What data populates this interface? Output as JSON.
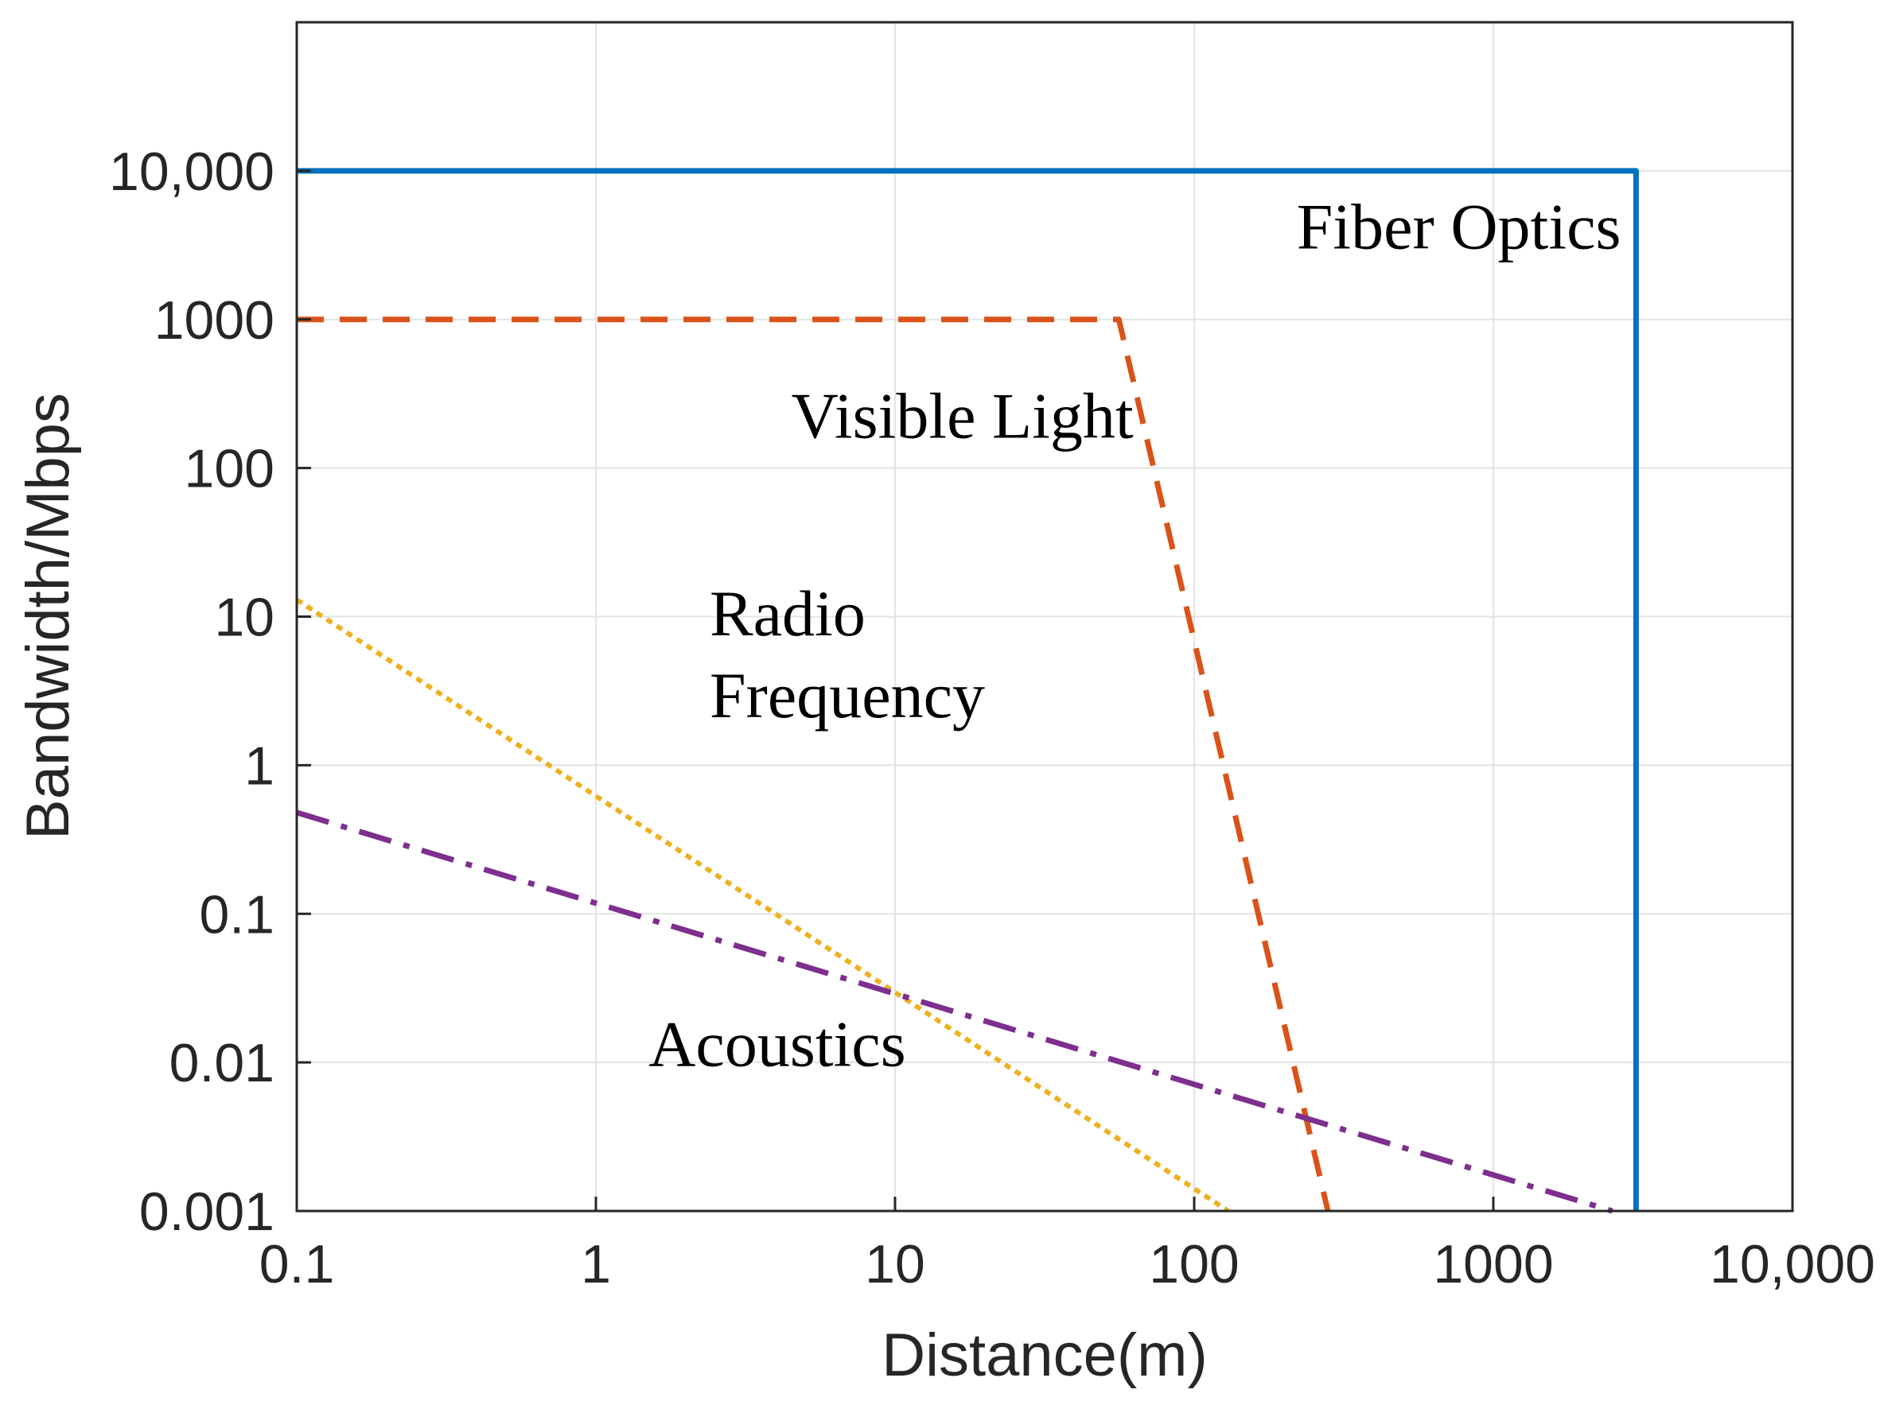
{
  "chart_data": {
    "type": "line",
    "title": "",
    "xlabel": "Distance(m)",
    "ylabel": "Bandwidth/Mbps",
    "xscale": "log",
    "yscale": "log",
    "xlim": [
      0.1,
      10000
    ],
    "ylim": [
      0.001,
      100000
    ],
    "grid": true,
    "x_ticks": [
      {
        "value": 0.1,
        "label": "0.1"
      },
      {
        "value": 1,
        "label": "1"
      },
      {
        "value": 10,
        "label": "10"
      },
      {
        "value": 100,
        "label": "100"
      },
      {
        "value": 1000,
        "label": "1000"
      },
      {
        "value": 10000,
        "label": "10,000"
      }
    ],
    "y_ticks": [
      {
        "value": 0.001,
        "label": "0.001"
      },
      {
        "value": 0.01,
        "label": "0.01"
      },
      {
        "value": 0.1,
        "label": "0.1"
      },
      {
        "value": 1,
        "label": "1"
      },
      {
        "value": 10,
        "label": "10"
      },
      {
        "value": 100,
        "label": "100"
      },
      {
        "value": 1000,
        "label": "1000"
      },
      {
        "value": 10000,
        "label": "10,000"
      }
    ],
    "series": [
      {
        "name": "Fiber Optics",
        "color": "#0072BD",
        "style": "solid",
        "points": [
          [
            0.1,
            10000
          ],
          [
            3000,
            10000
          ],
          [
            3000,
            0.001
          ]
        ]
      },
      {
        "name": "Visible Light",
        "color": "#D95319",
        "style": "dashed",
        "points": [
          [
            0.1,
            1000
          ],
          [
            56,
            1000
          ],
          [
            280,
            0.001
          ]
        ]
      },
      {
        "name": "Radio Frequency",
        "color": "#EDB120",
        "style": "dotted",
        "points": [
          [
            0.1,
            13
          ],
          [
            130,
            0.001
          ]
        ]
      },
      {
        "name": "Acoustics",
        "color": "#7E2F8E",
        "style": "dashdot",
        "points": [
          [
            0.1,
            0.48
          ],
          [
            2500,
            0.001
          ]
        ]
      }
    ],
    "annotations": [
      {
        "text": "Fiber Optics",
        "x": 220,
        "y": 3000
      },
      {
        "text": "Visible Light",
        "x": 4.5,
        "y": 160
      },
      {
        "text": "Radio",
        "x": 2.4,
        "y": 7.5
      },
      {
        "text": "Frequency",
        "x": 2.4,
        "y": 2.1
      },
      {
        "text": "Acoustics",
        "x": 1.5,
        "y": 0.0095
      }
    ]
  }
}
